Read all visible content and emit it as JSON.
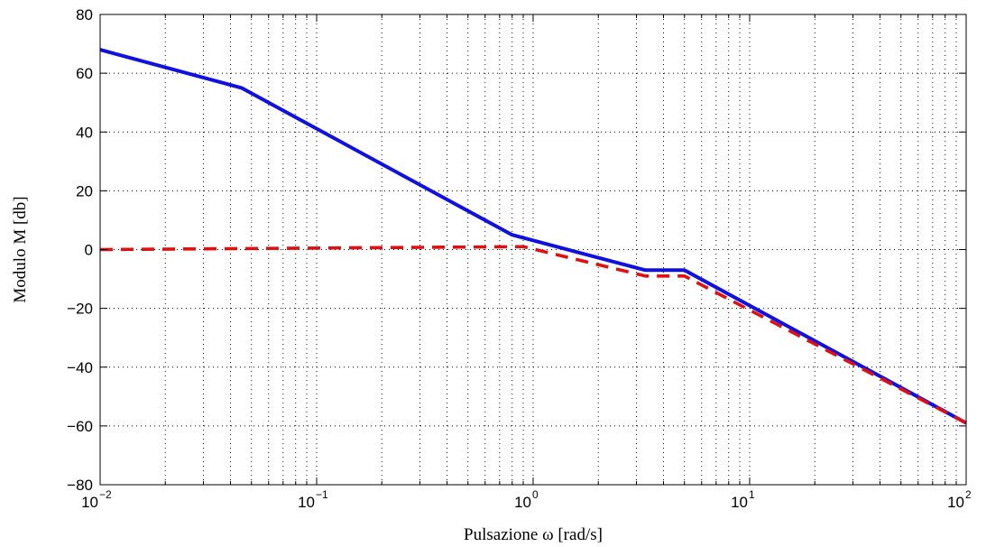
{
  "chart_data": {
    "type": "line",
    "title": "",
    "xlabel": "Pulsazione ω [rad/s]",
    "ylabel": "Modulo M [db]",
    "x_scale": "log",
    "xlim": [
      0.01,
      100
    ],
    "ylim": [
      -80,
      80
    ],
    "x_ticks": [
      {
        "value": 0.01,
        "base": "10",
        "exp": "−2"
      },
      {
        "value": 0.1,
        "base": "10",
        "exp": "−1"
      },
      {
        "value": 1,
        "base": "10",
        "exp": "0"
      },
      {
        "value": 10,
        "base": "10",
        "exp": "1"
      },
      {
        "value": 100,
        "base": "10",
        "exp": "2"
      }
    ],
    "y_ticks": [
      {
        "value": -80,
        "label": "−80"
      },
      {
        "value": -60,
        "label": "−60"
      },
      {
        "value": -40,
        "label": "−40"
      },
      {
        "value": -20,
        "label": "−20"
      },
      {
        "value": 0,
        "label": "0"
      },
      {
        "value": 20,
        "label": "20"
      },
      {
        "value": 40,
        "label": "40"
      },
      {
        "value": 60,
        "label": "60"
      },
      {
        "value": 80,
        "label": "80"
      }
    ],
    "grid": true,
    "series": [
      {
        "color": "#1010e0",
        "style": "solid",
        "x": [
          0.01,
          0.045,
          0.8,
          3.3,
          5,
          100
        ],
        "y": [
          68,
          55,
          5,
          -7,
          -7,
          -59
        ]
      },
      {
        "color": "#e01010",
        "style": "dashed",
        "x": [
          0.01,
          0.9,
          3.3,
          5,
          100
        ],
        "y": [
          0,
          1,
          -9,
          -9,
          -59
        ]
      }
    ]
  }
}
